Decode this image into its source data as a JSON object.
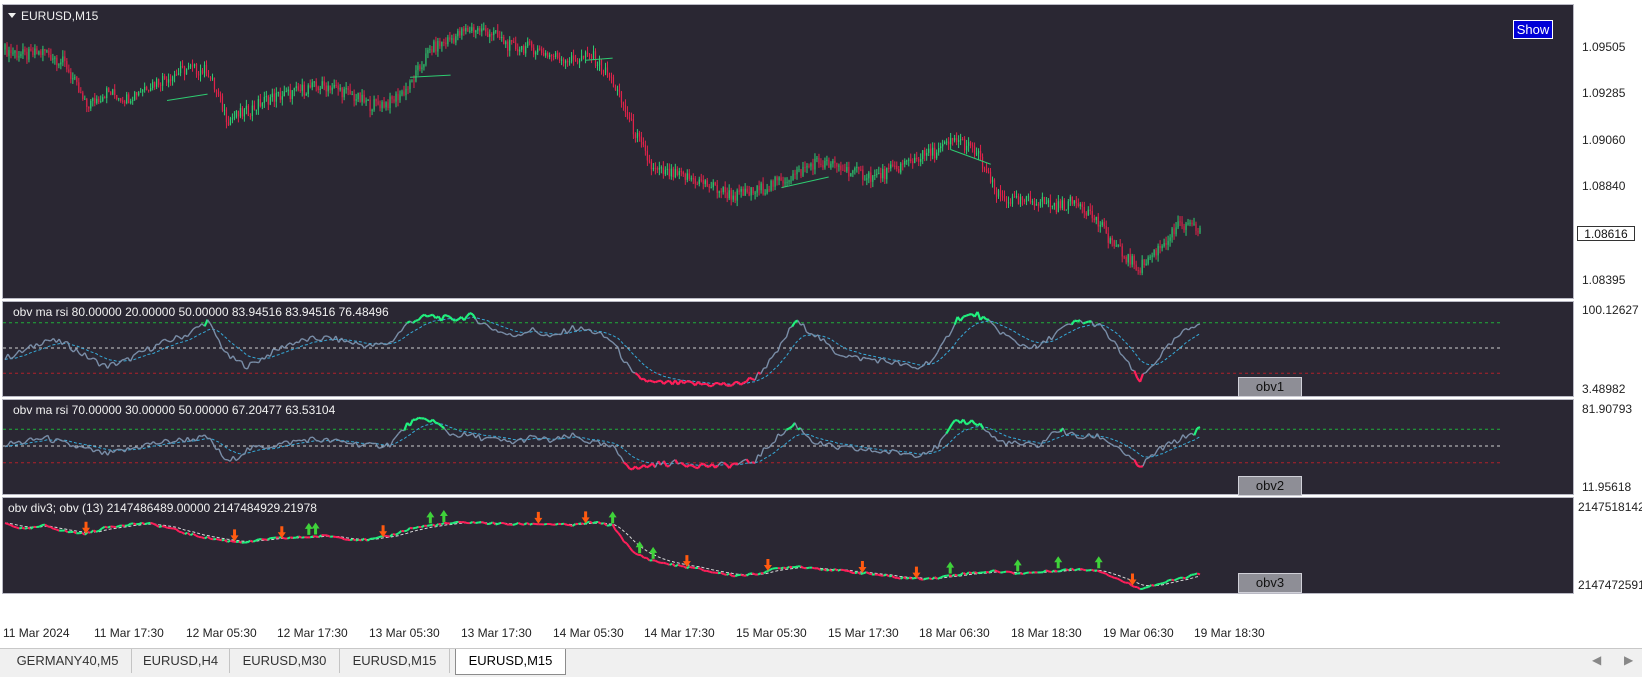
{
  "symbol_title": "EURUSD,M15",
  "show_button": "Show",
  "current_price": "1.08616",
  "colors": {
    "background": "#2a2733",
    "bull": "#2ecc71",
    "bear": "#e0234a",
    "obv_line": "#7a8ea8",
    "obv_up": "#21f07e",
    "obv_down": "#ff1f5a",
    "signal_line": "#35a9d8",
    "level_high": "#1fae3a",
    "level_mid": "#cfcfcf",
    "level_low": "#b0202a",
    "arrow_up": "#3fd23a",
    "arrow_down": "#ff5a10"
  },
  "main_pane": {
    "price_axis": [
      "1.09505",
      "1.09285",
      "1.09060",
      "1.08840",
      "1.08616",
      "1.08395"
    ]
  },
  "panes": [
    {
      "title": "obv ma rsi 80.00000 20.00000 50.00000 83.94516 83.94516 76.48496",
      "axis_labels": [
        "100.12627",
        "3.48982"
      ],
      "tag": "obv1",
      "levels": [
        80,
        50,
        20
      ]
    },
    {
      "title": "obv ma rsi 70.00000 30.00000 50.00000 67.20477 63.53104",
      "axis_labels": [
        "81.90793",
        "11.95618"
      ],
      "tag": "obv2",
      "levels": [
        70,
        50,
        30
      ]
    },
    {
      "title": "obv div3; obv (13) 2147486489.00000 2147484929.21978",
      "axis_labels": [
        "2147518142",
        "2147472591"
      ],
      "tag": "obv3",
      "levels": []
    }
  ],
  "time_axis": [
    "11 Mar 2024",
    "11 Mar 17:30",
    "12 Mar 05:30",
    "12 Mar 17:30",
    "13 Mar 05:30",
    "13 Mar 17:30",
    "14 Mar 05:30",
    "14 Mar 17:30",
    "15 Mar 05:30",
    "15 Mar 17:30",
    "18 Mar 06:30",
    "18 Mar 18:30",
    "19 Mar 06:30",
    "19 Mar 18:30"
  ],
  "tabs": [
    "GERMANY40,M5",
    "EURUSD,H4",
    "EURUSD,M30",
    "EURUSD,M15",
    "EURUSD,M15"
  ],
  "active_tab": 4,
  "chart_data": {
    "type": "candlestick",
    "ylim": [
      1.0828,
      1.0966
    ],
    "price_path": [
      [
        0,
        1.0945
      ],
      [
        3,
        1.0942
      ],
      [
        6,
        1.0944
      ],
      [
        9,
        1.0938
      ],
      [
        12,
        1.0918
      ],
      [
        15,
        1.0925
      ],
      [
        18,
        1.0922
      ],
      [
        21,
        1.0928
      ],
      [
        24,
        1.0932
      ],
      [
        27,
        1.0936
      ],
      [
        30,
        1.0935
      ],
      [
        33,
        1.0912
      ],
      [
        36,
        1.0916
      ],
      [
        39,
        1.0922
      ],
      [
        42,
        1.0924
      ],
      [
        45,
        1.0927
      ],
      [
        48,
        1.0928
      ],
      [
        51,
        1.0924
      ],
      [
        54,
        1.0919
      ],
      [
        57,
        1.092
      ],
      [
        60,
        1.0928
      ],
      [
        63,
        1.0945
      ],
      [
        66,
        1.095
      ],
      [
        69,
        1.0955
      ],
      [
        72,
        1.0953
      ],
      [
        75,
        1.0946
      ],
      [
        78,
        1.0946
      ],
      [
        81,
        1.0942
      ],
      [
        84,
        1.094
      ],
      [
        87,
        1.0942
      ],
      [
        90,
        1.093
      ],
      [
        93,
        1.0908
      ],
      [
        96,
        1.0888
      ],
      [
        99,
        1.0886
      ],
      [
        102,
        1.0884
      ],
      [
        105,
        1.088
      ],
      [
        108,
        1.0876
      ],
      [
        111,
        1.0878
      ],
      [
        114,
        1.0882
      ],
      [
        117,
        1.0886
      ],
      [
        120,
        1.0892
      ],
      [
        123,
        1.089
      ],
      [
        126,
        1.0887
      ],
      [
        129,
        1.0885
      ],
      [
        132,
        1.0889
      ],
      [
        135,
        1.0894
      ],
      [
        138,
        1.0897
      ],
      [
        141,
        1.0903
      ],
      [
        144,
        1.0896
      ],
      [
        147,
        1.0876
      ],
      [
        150,
        1.0873
      ],
      [
        153,
        1.0874
      ],
      [
        156,
        1.0871
      ],
      [
        159,
        1.0874
      ],
      [
        162,
        1.0863
      ],
      [
        165,
        1.085
      ],
      [
        168,
        1.0842
      ],
      [
        171,
        1.0852
      ],
      [
        174,
        1.0862
      ],
      [
        177,
        1.086
      ]
    ],
    "x_count": 178,
    "obv1_path": [
      [
        0,
        38
      ],
      [
        3,
        47
      ],
      [
        6,
        60
      ],
      [
        9,
        55
      ],
      [
        12,
        40
      ],
      [
        15,
        28
      ],
      [
        18,
        35
      ],
      [
        21,
        48
      ],
      [
        24,
        58
      ],
      [
        27,
        66
      ],
      [
        30,
        82
      ],
      [
        33,
        40
      ],
      [
        36,
        28
      ],
      [
        39,
        42
      ],
      [
        42,
        55
      ],
      [
        45,
        60
      ],
      [
        48,
        62
      ],
      [
        51,
        57
      ],
      [
        54,
        52
      ],
      [
        57,
        56
      ],
      [
        60,
        82
      ],
      [
        63,
        88
      ],
      [
        66,
        84
      ],
      [
        69,
        88
      ],
      [
        72,
        74
      ],
      [
        75,
        64
      ],
      [
        78,
        72
      ],
      [
        81,
        62
      ],
      [
        84,
        74
      ],
      [
        87,
        70
      ],
      [
        90,
        58
      ],
      [
        93,
        18
      ],
      [
        96,
        8
      ],
      [
        99,
        8
      ],
      [
        102,
        7
      ],
      [
        105,
        7
      ],
      [
        108,
        6
      ],
      [
        111,
        14
      ],
      [
        114,
        40
      ],
      [
        117,
        82
      ],
      [
        120,
        66
      ],
      [
        123,
        45
      ],
      [
        126,
        38
      ],
      [
        129,
        36
      ],
      [
        132,
        32
      ],
      [
        135,
        25
      ],
      [
        138,
        40
      ],
      [
        141,
        85
      ],
      [
        144,
        90
      ],
      [
        147,
        72
      ],
      [
        150,
        55
      ],
      [
        153,
        50
      ],
      [
        156,
        70
      ],
      [
        159,
        82
      ],
      [
        162,
        78
      ],
      [
        165,
        48
      ],
      [
        168,
        10
      ],
      [
        171,
        40
      ],
      [
        174,
        65
      ],
      [
        177,
        82
      ]
    ],
    "obv2_path": [
      [
        0,
        52
      ],
      [
        3,
        55
      ],
      [
        6,
        60
      ],
      [
        9,
        52
      ],
      [
        12,
        46
      ],
      [
        15,
        40
      ],
      [
        18,
        45
      ],
      [
        21,
        52
      ],
      [
        24,
        55
      ],
      [
        27,
        58
      ],
      [
        30,
        60
      ],
      [
        33,
        30
      ],
      [
        36,
        46
      ],
      [
        39,
        50
      ],
      [
        42,
        54
      ],
      [
        45,
        58
      ],
      [
        48,
        56
      ],
      [
        51,
        54
      ],
      [
        54,
        50
      ],
      [
        57,
        52
      ],
      [
        60,
        78
      ],
      [
        63,
        82
      ],
      [
        66,
        64
      ],
      [
        69,
        62
      ],
      [
        72,
        58
      ],
      [
        75,
        54
      ],
      [
        78,
        60
      ],
      [
        81,
        56
      ],
      [
        84,
        62
      ],
      [
        87,
        54
      ],
      [
        90,
        48
      ],
      [
        93,
        22
      ],
      [
        96,
        28
      ],
      [
        99,
        30
      ],
      [
        102,
        28
      ],
      [
        105,
        26
      ],
      [
        108,
        28
      ],
      [
        111,
        32
      ],
      [
        114,
        58
      ],
      [
        117,
        76
      ],
      [
        120,
        54
      ],
      [
        123,
        48
      ],
      [
        126,
        46
      ],
      [
        129,
        44
      ],
      [
        132,
        42
      ],
      [
        135,
        40
      ],
      [
        138,
        48
      ],
      [
        141,
        80
      ],
      [
        144,
        78
      ],
      [
        147,
        56
      ],
      [
        150,
        52
      ],
      [
        153,
        50
      ],
      [
        156,
        70
      ],
      [
        159,
        60
      ],
      [
        162,
        62
      ],
      [
        165,
        48
      ],
      [
        168,
        24
      ],
      [
        171,
        46
      ],
      [
        174,
        58
      ],
      [
        177,
        70
      ]
    ],
    "obv3_path": [
      [
        0,
        2147506000
      ],
      [
        3,
        2147503000
      ],
      [
        6,
        2147505000
      ],
      [
        9,
        2147502000
      ],
      [
        12,
        2147501000
      ],
      [
        15,
        2147504000
      ],
      [
        18,
        2147505500
      ],
      [
        21,
        2147506000
      ],
      [
        24,
        2147504000
      ],
      [
        27,
        2147501000
      ],
      [
        30,
        2147499000
      ],
      [
        33,
        2147497500
      ],
      [
        36,
        2147497000
      ],
      [
        39,
        2147498500
      ],
      [
        42,
        2147499000
      ],
      [
        45,
        2147499500
      ],
      [
        48,
        2147500000
      ],
      [
        51,
        2147498500
      ],
      [
        54,
        2147498000
      ],
      [
        57,
        2147500000
      ],
      [
        60,
        2147503500
      ],
      [
        63,
        2147505000
      ],
      [
        66,
        2147506000
      ],
      [
        69,
        2147506500
      ],
      [
        72,
        2147506000
      ],
      [
        75,
        2147505500
      ],
      [
        78,
        2147505800
      ],
      [
        81,
        2147505600
      ],
      [
        84,
        2147505000
      ],
      [
        87,
        2147506500
      ],
      [
        90,
        2147505000
      ],
      [
        93,
        2147492000
      ],
      [
        96,
        2147488000
      ],
      [
        99,
        2147486000
      ],
      [
        102,
        2147484500
      ],
      [
        105,
        2147482500
      ],
      [
        108,
        2147481000
      ],
      [
        111,
        2147481500
      ],
      [
        114,
        2147484000
      ],
      [
        117,
        2147485500
      ],
      [
        120,
        2147484500
      ],
      [
        123,
        2147483500
      ],
      [
        126,
        2147482500
      ],
      [
        129,
        2147481500
      ],
      [
        132,
        2147480000
      ],
      [
        135,
        2147479500
      ],
      [
        138,
        2147479800
      ],
      [
        141,
        2147481500
      ],
      [
        144,
        2147482500
      ],
      [
        147,
        2147483000
      ],
      [
        150,
        2147482000
      ],
      [
        153,
        2147482500
      ],
      [
        156,
        2147483500
      ],
      [
        159,
        2147484000
      ],
      [
        162,
        2147483500
      ],
      [
        165,
        2147479000
      ],
      [
        168,
        2147474800
      ],
      [
        171,
        2147477000
      ],
      [
        174,
        2147479500
      ],
      [
        177,
        2147481800
      ]
    ],
    "obv3_ylim": [
      2147472591,
      2147518142
    ],
    "obv3_arrows_up": [
      45,
      46,
      63,
      65,
      90,
      94,
      96,
      140,
      150,
      156,
      162
    ],
    "obv3_arrows_down": [
      12,
      34,
      41,
      56,
      79,
      86,
      101,
      113,
      127,
      135,
      167
    ]
  }
}
